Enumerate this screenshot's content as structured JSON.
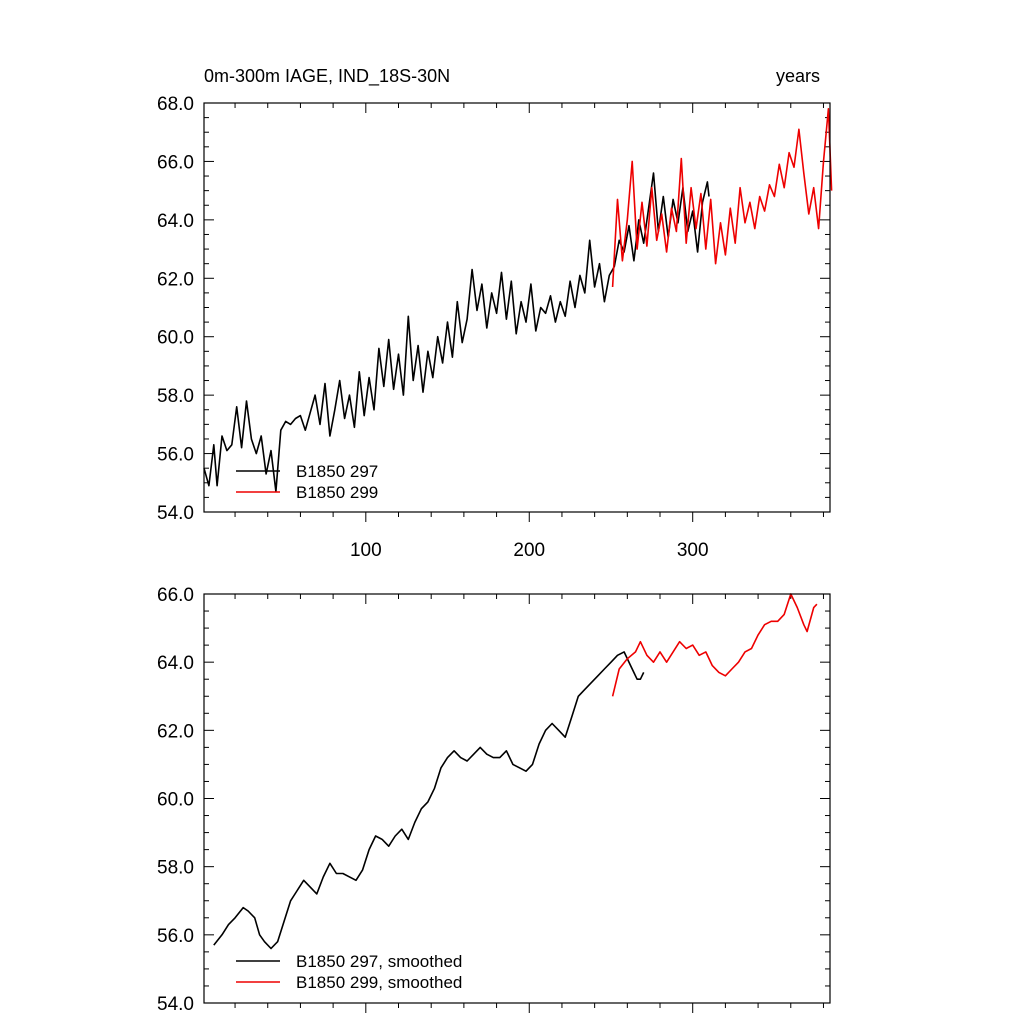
{
  "chart_data": [
    {
      "type": "line",
      "title": "0m-300m IAGE, IND_18S-30N",
      "right_title": "years",
      "xlabel": "",
      "ylabel": "",
      "xlim": [
        1,
        384
      ],
      "ylim": [
        54.0,
        68.0
      ],
      "x_ticks": [
        100,
        200,
        300
      ],
      "x_tick_labels": [
        "100",
        "200",
        "300"
      ],
      "y_ticks": [
        54,
        56,
        58,
        60,
        62,
        64,
        66,
        68
      ],
      "y_tick_labels": [
        "54.0",
        "56.0",
        "58.0",
        "60.0",
        "62.0",
        "64.0",
        "66.0",
        "68.0"
      ],
      "grid": false,
      "legend_position": "bottom-left",
      "series": [
        {
          "name": "B1850 297",
          "color": "#000000",
          "points": [
            [
              1,
              55.5
            ],
            [
              4,
              54.9
            ],
            [
              7,
              56.3
            ],
            [
              9,
              54.9
            ],
            [
              12,
              56.6
            ],
            [
              15,
              56.1
            ],
            [
              18,
              56.3
            ],
            [
              21,
              57.6
            ],
            [
              24,
              56.2
            ],
            [
              27,
              57.8
            ],
            [
              30,
              56.5
            ],
            [
              33,
              56.0
            ],
            [
              36,
              56.6
            ],
            [
              39,
              55.3
            ],
            [
              42,
              56.1
            ],
            [
              45,
              54.7
            ],
            [
              48,
              56.8
            ],
            [
              51,
              57.1
            ],
            [
              54,
              57.0
            ],
            [
              57,
              57.2
            ],
            [
              60,
              57.3
            ],
            [
              63,
              56.8
            ],
            [
              66,
              57.4
            ],
            [
              69,
              58.0
            ],
            [
              72,
              57.0
            ],
            [
              75,
              58.4
            ],
            [
              78,
              56.6
            ],
            [
              81,
              57.5
            ],
            [
              84,
              58.5
            ],
            [
              87,
              57.2
            ],
            [
              90,
              58.0
            ],
            [
              93,
              56.9
            ],
            [
              96,
              58.8
            ],
            [
              99,
              57.3
            ],
            [
              102,
              58.6
            ],
            [
              105,
              57.5
            ],
            [
              108,
              59.6
            ],
            [
              111,
              58.3
            ],
            [
              114,
              59.9
            ],
            [
              117,
              58.2
            ],
            [
              120,
              59.4
            ],
            [
              123,
              58.0
            ],
            [
              126,
              60.7
            ],
            [
              129,
              58.5
            ],
            [
              132,
              59.7
            ],
            [
              135,
              58.1
            ],
            [
              138,
              59.5
            ],
            [
              141,
              58.6
            ],
            [
              144,
              60.0
            ],
            [
              147,
              59.1
            ],
            [
              150,
              60.5
            ],
            [
              153,
              59.3
            ],
            [
              156,
              61.2
            ],
            [
              159,
              59.8
            ],
            [
              162,
              60.6
            ],
            [
              165,
              62.3
            ],
            [
              168,
              60.9
            ],
            [
              171,
              61.8
            ],
            [
              174,
              60.3
            ],
            [
              177,
              61.5
            ],
            [
              180,
              60.8
            ],
            [
              183,
              62.2
            ],
            [
              186,
              60.6
            ],
            [
              189,
              61.9
            ],
            [
              192,
              60.1
            ],
            [
              195,
              61.2
            ],
            [
              198,
              60.5
            ],
            [
              201,
              61.8
            ],
            [
              204,
              60.2
            ],
            [
              207,
              61.0
            ],
            [
              210,
              60.8
            ],
            [
              213,
              61.4
            ],
            [
              216,
              60.5
            ],
            [
              219,
              61.2
            ],
            [
              222,
              60.7
            ],
            [
              225,
              61.9
            ],
            [
              228,
              61.0
            ],
            [
              231,
              62.1
            ],
            [
              234,
              61.5
            ],
            [
              237,
              63.3
            ],
            [
              240,
              61.7
            ],
            [
              243,
              62.5
            ],
            [
              246,
              61.2
            ],
            [
              249,
              62.1
            ],
            [
              252,
              62.4
            ],
            [
              255,
              63.3
            ],
            [
              258,
              62.9
            ],
            [
              261,
              63.8
            ],
            [
              264,
              62.6
            ],
            [
              267,
              64.0
            ],
            [
              270,
              63.2
            ],
            [
              273,
              64.4
            ],
            [
              276,
              65.6
            ],
            [
              279,
              63.6
            ],
            [
              282,
              64.8
            ],
            [
              285,
              63.4
            ],
            [
              288,
              64.7
            ],
            [
              291,
              63.9
            ],
            [
              294,
              65.1
            ],
            [
              297,
              63.6
            ],
            [
              300,
              64.3
            ],
            [
              303,
              62.9
            ],
            [
              306,
              64.6
            ],
            [
              309,
              65.3
            ],
            [
              310,
              64.8
            ]
          ]
        },
        {
          "name": "B1850 299",
          "color": "#ee0000",
          "points": [
            [
              251,
              61.7
            ],
            [
              254,
              64.7
            ],
            [
              257,
              62.6
            ],
            [
              260,
              64.0
            ],
            [
              263,
              66.0
            ],
            [
              266,
              63.0
            ],
            [
              269,
              64.6
            ],
            [
              272,
              63.1
            ],
            [
              275,
              65.1
            ],
            [
              278,
              63.3
            ],
            [
              281,
              64.2
            ],
            [
              284,
              62.9
            ],
            [
              287,
              64.4
            ],
            [
              290,
              63.6
            ],
            [
              293,
              66.1
            ],
            [
              296,
              63.2
            ],
            [
              299,
              65.1
            ],
            [
              302,
              63.7
            ],
            [
              305,
              64.9
            ],
            [
              308,
              63.0
            ],
            [
              311,
              64.7
            ],
            [
              314,
              62.5
            ],
            [
              317,
              63.9
            ],
            [
              320,
              62.8
            ],
            [
              323,
              64.4
            ],
            [
              326,
              63.2
            ],
            [
              329,
              65.1
            ],
            [
              332,
              63.9
            ],
            [
              335,
              64.6
            ],
            [
              338,
              63.7
            ],
            [
              341,
              64.8
            ],
            [
              344,
              64.3
            ],
            [
              347,
              65.2
            ],
            [
              350,
              64.8
            ],
            [
              353,
              65.9
            ],
            [
              356,
              65.1
            ],
            [
              359,
              66.3
            ],
            [
              362,
              65.8
            ],
            [
              365,
              67.1
            ],
            [
              368,
              65.6
            ],
            [
              371,
              64.2
            ],
            [
              374,
              65.1
            ],
            [
              377,
              63.7
            ],
            [
              380,
              66.0
            ],
            [
              383,
              67.8
            ],
            [
              385,
              65.0
            ]
          ]
        }
      ],
      "legend": [
        "B1850 297",
        "B1850 299"
      ]
    },
    {
      "type": "line",
      "title": "",
      "xlabel": "",
      "ylabel": "",
      "xlim": [
        1,
        384
      ],
      "ylim": [
        54.0,
        66.0
      ],
      "x_ticks": [
        100,
        200,
        300
      ],
      "y_ticks": [
        54,
        56,
        58,
        60,
        62,
        64,
        66
      ],
      "y_tick_labels": [
        "54.0",
        "56.0",
        "58.0",
        "60.0",
        "62.0",
        "64.0",
        "66.0"
      ],
      "grid": false,
      "legend_position": "bottom-left",
      "series": [
        {
          "name": "B1850 297, smoothed",
          "color": "#000000",
          "points": [
            [
              7,
              55.7
            ],
            [
              12,
              56.0
            ],
            [
              16,
              56.3
            ],
            [
              20,
              56.5
            ],
            [
              25,
              56.8
            ],
            [
              28,
              56.7
            ],
            [
              32,
              56.5
            ],
            [
              35,
              56.0
            ],
            [
              38,
              55.8
            ],
            [
              42,
              55.6
            ],
            [
              46,
              55.8
            ],
            [
              50,
              56.4
            ],
            [
              54,
              57.0
            ],
            [
              58,
              57.3
            ],
            [
              62,
              57.6
            ],
            [
              66,
              57.4
            ],
            [
              70,
              57.2
            ],
            [
              74,
              57.7
            ],
            [
              78,
              58.1
            ],
            [
              82,
              57.8
            ],
            [
              86,
              57.8
            ],
            [
              90,
              57.7
            ],
            [
              94,
              57.6
            ],
            [
              98,
              57.9
            ],
            [
              102,
              58.5
            ],
            [
              106,
              58.9
            ],
            [
              110,
              58.8
            ],
            [
              114,
              58.6
            ],
            [
              118,
              58.9
            ],
            [
              122,
              59.1
            ],
            [
              126,
              58.8
            ],
            [
              130,
              59.3
            ],
            [
              134,
              59.7
            ],
            [
              138,
              59.9
            ],
            [
              142,
              60.3
            ],
            [
              146,
              60.9
            ],
            [
              150,
              61.2
            ],
            [
              154,
              61.4
            ],
            [
              158,
              61.2
            ],
            [
              162,
              61.1
            ],
            [
              166,
              61.3
            ],
            [
              170,
              61.5
            ],
            [
              174,
              61.3
            ],
            [
              178,
              61.2
            ],
            [
              182,
              61.2
            ],
            [
              186,
              61.4
            ],
            [
              190,
              61.0
            ],
            [
              194,
              60.9
            ],
            [
              198,
              60.8
            ],
            [
              202,
              61.0
            ],
            [
              206,
              61.6
            ],
            [
              210,
              62.0
            ],
            [
              214,
              62.2
            ],
            [
              218,
              62.0
            ],
            [
              222,
              61.8
            ],
            [
              226,
              62.4
            ],
            [
              230,
              63.0
            ],
            [
              234,
              63.2
            ],
            [
              238,
              63.4
            ],
            [
              242,
              63.6
            ],
            [
              246,
              63.8
            ],
            [
              250,
              64.0
            ],
            [
              254,
              64.2
            ],
            [
              258,
              64.3
            ],
            [
              262,
              63.9
            ],
            [
              266,
              63.5
            ],
            [
              268,
              63.5
            ],
            [
              270,
              63.7
            ]
          ]
        },
        {
          "name": "B1850 299, smoothed",
          "color": "#ee0000",
          "points": [
            [
              251,
              63.0
            ],
            [
              255,
              63.8
            ],
            [
              260,
              64.1
            ],
            [
              265,
              64.3
            ],
            [
              268,
              64.6
            ],
            [
              272,
              64.2
            ],
            [
              276,
              64.0
            ],
            [
              280,
              64.3
            ],
            [
              284,
              64.0
            ],
            [
              288,
              64.3
            ],
            [
              292,
              64.6
            ],
            [
              296,
              64.4
            ],
            [
              300,
              64.5
            ],
            [
              304,
              64.2
            ],
            [
              308,
              64.3
            ],
            [
              312,
              63.9
            ],
            [
              316,
              63.7
            ],
            [
              320,
              63.6
            ],
            [
              324,
              63.8
            ],
            [
              328,
              64.0
            ],
            [
              332,
              64.3
            ],
            [
              336,
              64.4
            ],
            [
              340,
              64.8
            ],
            [
              344,
              65.1
            ],
            [
              348,
              65.2
            ],
            [
              352,
              65.2
            ],
            [
              356,
              65.4
            ],
            [
              360,
              66.0
            ],
            [
              364,
              65.6
            ],
            [
              368,
              65.1
            ],
            [
              370,
              64.9
            ],
            [
              374,
              65.6
            ],
            [
              376,
              65.7
            ]
          ]
        }
      ],
      "legend": [
        "B1850 297, smoothed",
        "B1850 299, smoothed"
      ]
    }
  ]
}
